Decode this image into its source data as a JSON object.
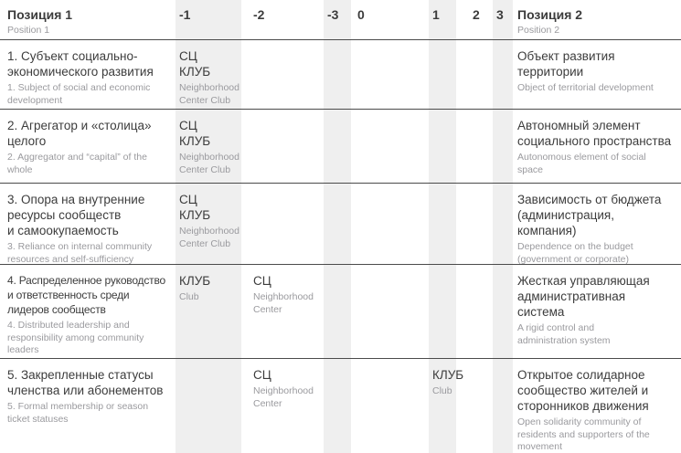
{
  "colors": {
    "stripe": "#efefef",
    "text_dark": "#3c3c3c",
    "text_gray": "#9a9a9e",
    "line": "#4b4b4b",
    "bg": "#ffffff"
  },
  "table": {
    "columns": {
      "position1": {
        "title": "Позиция 1",
        "subtitle": "Position 1"
      },
      "scale": [
        "-1",
        "-2",
        "-3",
        "0",
        "1",
        "2",
        "3"
      ],
      "position2": {
        "title": "Позиция 2",
        "subtitle": "Position 2"
      }
    },
    "rows": [
      {
        "position1": {
          "ru": "1. Субъект социально-\nэкономического развития",
          "en": "1. Subject of social and economic\ndevelopment"
        },
        "marks": {
          "neg1": {
            "ru": "СЦ\nКЛУБ",
            "en": "Neighborhood\nCenter Club"
          }
        },
        "position2": {
          "ru": "Объект развития\nтерритории",
          "en": "Object of territorial development"
        }
      },
      {
        "position1": {
          "ru": "2. Агрегатор и «столица»\nцелого",
          "en": "2. Aggregator and “capital” of the\nwhole"
        },
        "marks": {
          "neg1": {
            "ru": "СЦ\nКЛУБ",
            "en": "Neighborhood\nCenter Club"
          }
        },
        "position2": {
          "ru": "Автономный элемент\nсоциального пространства",
          "en": "Autonomous element of social\nspace"
        }
      },
      {
        "position1": {
          "ru": "3. Опора на внутренние\nресурсы сообществ\nи самоокупаемость",
          "en": "3. Reliance on internal community\nresources and self-sufficiency"
        },
        "marks": {
          "neg1": {
            "ru": "СЦ\nКЛУБ",
            "en": "Neighborhood\nCenter Club"
          }
        },
        "position2": {
          "ru": "Зависимость от бюджета\n(администрация,\nкомпания)",
          "en": "Dependence on the budget\n(government or corporate)"
        }
      },
      {
        "position1": {
          "ru": "4. Распределенное руководство\nи ответственность среди\nлидеров сообществ",
          "en": "4. Distributed leadership and\nresponsibility among community\nleaders"
        },
        "marks": {
          "neg1": {
            "ru": "КЛУБ",
            "en": "Club"
          },
          "neg2": {
            "ru": "СЦ",
            "en": "Neighborhood\nCenter"
          }
        },
        "position2": {
          "ru": "Жесткая управляющая\nадминистративная\nсистема",
          "en": "A rigid control and\nadministration system"
        }
      },
      {
        "position1": {
          "ru": "5. Закрепленные статусы\nчленства или абонементов",
          "en": "5. Formal membership or season\nticket statuses"
        },
        "marks": {
          "neg2": {
            "ru": "СЦ",
            "en": "Neighborhood\nCenter"
          },
          "pos1": {
            "ru": "КЛУБ",
            "en": "Club"
          }
        },
        "position2": {
          "ru": "Открытое солидарное\nсообщество жителей и\nсторонников движения",
          "en": "Open solidarity community of\nresidents and supporters of the\nmovement"
        }
      }
    ]
  }
}
